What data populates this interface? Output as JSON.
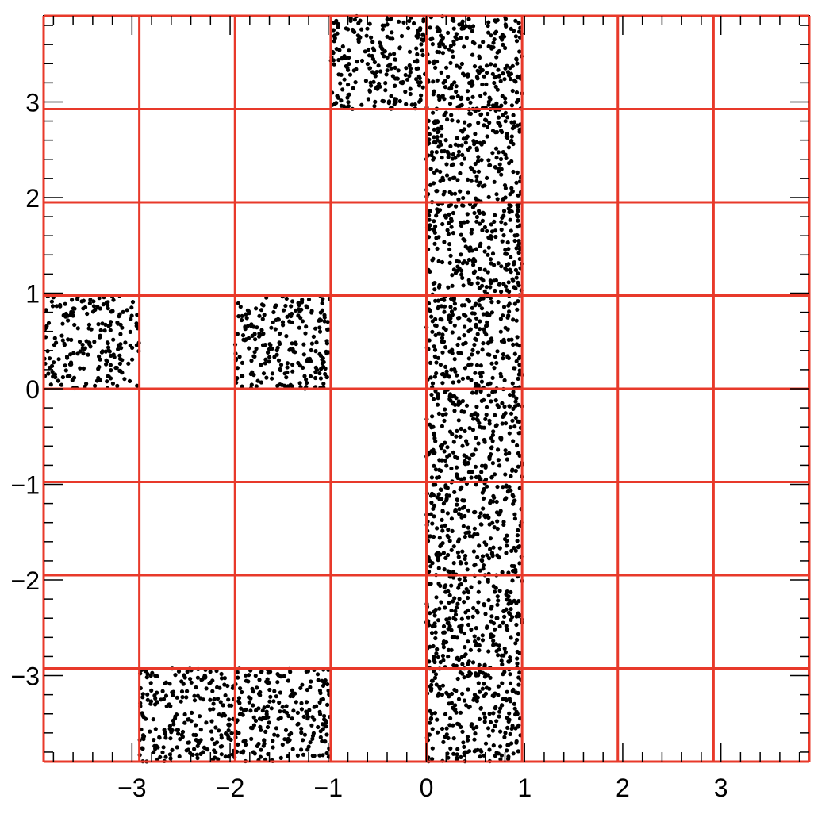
{
  "chart_data": {
    "type": "scatter",
    "title": "",
    "xlabel": "",
    "ylabel": "",
    "xlim": [
      -3.9,
      3.9
    ],
    "ylim": [
      -3.9,
      3.9
    ],
    "grid": true,
    "legend": "none",
    "colors": {
      "grid": "#e8392a",
      "points": "#000000",
      "axes": "#000000"
    },
    "x_tick_labels": [
      {
        "value": -3,
        "label": "−3"
      },
      {
        "value": -2,
        "label": "−2"
      },
      {
        "value": -1,
        "label": "−1"
      },
      {
        "value": 0,
        "label": "0"
      },
      {
        "value": 1,
        "label": "1"
      },
      {
        "value": 2,
        "label": "2"
      },
      {
        "value": 3,
        "label": "3"
      }
    ],
    "y_tick_labels": [
      {
        "value": -3,
        "label": "−3"
      },
      {
        "value": -2,
        "label": "−2"
      },
      {
        "value": -1,
        "label": "−1"
      },
      {
        "value": 0,
        "label": "0"
      },
      {
        "value": 1,
        "label": "1"
      },
      {
        "value": 2,
        "label": "2"
      },
      {
        "value": 3,
        "label": "3"
      }
    ],
    "red_grid_lines_x": [
      -3.9,
      -2.925,
      -1.95,
      -0.975,
      0,
      0.975,
      1.95,
      2.925,
      3.9
    ],
    "red_grid_lines_y": [
      -3.9,
      -2.925,
      -1.95,
      -0.975,
      0,
      0.975,
      1.95,
      2.925,
      3.9
    ],
    "filled_cells": [
      {
        "x": [
          -3.9,
          -2.925
        ],
        "y": [
          0,
          0.975
        ],
        "points": 210
      },
      {
        "x": [
          -1.95,
          -0.975
        ],
        "y": [
          0,
          0.975
        ],
        "points": 230
      },
      {
        "x": [
          -0.975,
          0
        ],
        "y": [
          2.925,
          3.9
        ],
        "points": 230
      },
      {
        "x": [
          0,
          0.975
        ],
        "y": [
          2.925,
          3.9
        ],
        "points": 230
      },
      {
        "x": [
          0,
          0.975
        ],
        "y": [
          1.95,
          2.925
        ],
        "points": 230
      },
      {
        "x": [
          0,
          0.975
        ],
        "y": [
          0.975,
          1.95
        ],
        "points": 230
      },
      {
        "x": [
          0,
          0.975
        ],
        "y": [
          0,
          0.975
        ],
        "points": 230
      },
      {
        "x": [
          0,
          0.975
        ],
        "y": [
          -0.975,
          0
        ],
        "points": 230
      },
      {
        "x": [
          0,
          0.975
        ],
        "y": [
          -1.95,
          -0.975
        ],
        "points": 230
      },
      {
        "x": [
          0,
          0.975
        ],
        "y": [
          -2.925,
          -1.95
        ],
        "points": 230
      },
      {
        "x": [
          0,
          0.975
        ],
        "y": [
          -3.9,
          -2.925
        ],
        "points": 230
      },
      {
        "x": [
          -2.925,
          -1.95
        ],
        "y": [
          -3.9,
          -2.925
        ],
        "points": 230
      },
      {
        "x": [
          -1.95,
          -0.975
        ],
        "y": [
          -3.9,
          -2.925
        ],
        "points": 230
      }
    ]
  }
}
